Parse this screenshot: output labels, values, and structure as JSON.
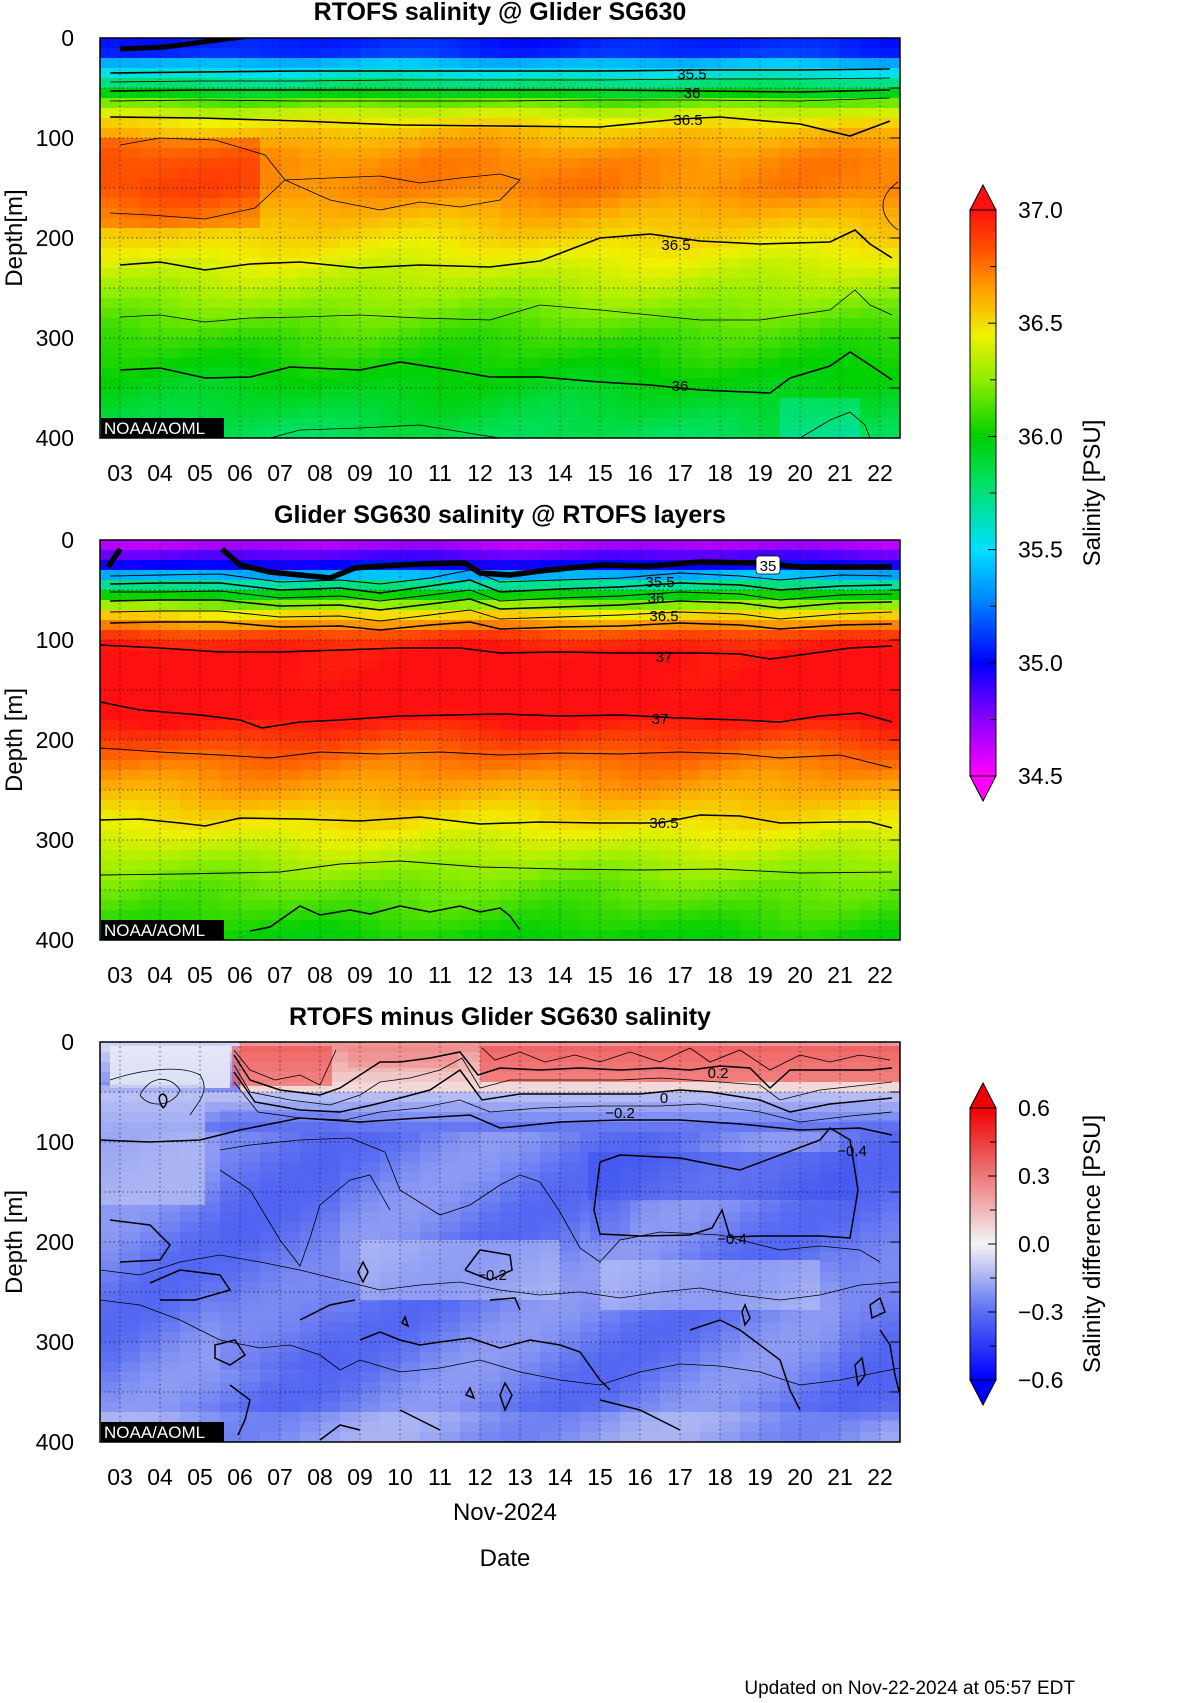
{
  "footer": {
    "updated": "Updated on Nov-22-2024 at 05:57 EDT"
  },
  "chart_data": [
    {
      "type": "heatmap",
      "title": "RTOFS salinity @ Glider SG630",
      "ylabel": "Depth[m]",
      "xlabel": "",
      "x_ticks": [
        "03",
        "04",
        "05",
        "06",
        "07",
        "08",
        "09",
        "10",
        "11",
        "12",
        "13",
        "14",
        "15",
        "16",
        "17",
        "18",
        "19",
        "20",
        "21",
        "22"
      ],
      "y_ticks": [
        0,
        100,
        200,
        300,
        400
      ],
      "ylim": [
        400,
        0
      ],
      "x_range_days": [
        2.5,
        22.5
      ],
      "grid": true,
      "watermark": "NOAA/AOML",
      "colorscale": "salinity",
      "contour_labels": [
        {
          "text": "35.5",
          "day": 17.3,
          "depth": 35
        },
        {
          "text": "36",
          "day": 17.3,
          "depth": 54
        },
        {
          "text": "36.5",
          "day": 17.2,
          "depth": 81
        },
        {
          "text": "36.5",
          "day": 16.9,
          "depth": 206
        },
        {
          "text": "36",
          "day": 17.0,
          "depth": 347
        }
      ],
      "profile": [
        {
          "depth": 0,
          "value": 35.05
        },
        {
          "depth": 15,
          "value": 35.1
        },
        {
          "depth": 25,
          "value": 35.4
        },
        {
          "depth": 40,
          "value": 35.65
        },
        {
          "depth": 55,
          "value": 35.95
        },
        {
          "depth": 70,
          "value": 36.3
        },
        {
          "depth": 90,
          "value": 36.55
        },
        {
          "depth": 120,
          "value": 36.7
        },
        {
          "depth": 150,
          "value": 36.72
        },
        {
          "depth": 190,
          "value": 36.55
        },
        {
          "depth": 240,
          "value": 36.35
        },
        {
          "depth": 300,
          "value": 36.1
        },
        {
          "depth": 350,
          "value": 35.95
        },
        {
          "depth": 400,
          "value": 35.82
        }
      ]
    },
    {
      "type": "heatmap",
      "title": "Glider SG630 salinity @ RTOFS layers",
      "ylabel": "Depth [m]",
      "xlabel": "",
      "x_ticks": [
        "03",
        "04",
        "05",
        "06",
        "07",
        "08",
        "09",
        "10",
        "11",
        "12",
        "13",
        "14",
        "15",
        "16",
        "17",
        "18",
        "19",
        "20",
        "21",
        "22"
      ],
      "y_ticks": [
        0,
        100,
        200,
        300,
        400
      ],
      "ylim": [
        400,
        0
      ],
      "x_range_days": [
        2.5,
        22.5
      ],
      "grid": true,
      "watermark": "NOAA/AOML",
      "colorscale": "salinity",
      "contour_labels": [
        {
          "text": "35",
          "day": 19.2,
          "depth": 25
        },
        {
          "text": "35.5",
          "day": 16.5,
          "depth": 41
        },
        {
          "text": "36",
          "day": 16.4,
          "depth": 57
        },
        {
          "text": "36.5",
          "day": 16.6,
          "depth": 75
        },
        {
          "text": "37",
          "day": 16.6,
          "depth": 116
        },
        {
          "text": "37",
          "day": 16.5,
          "depth": 178
        },
        {
          "text": "36.5",
          "day": 16.6,
          "depth": 282
        }
      ],
      "profile": [
        {
          "depth": 0,
          "value": 34.6
        },
        {
          "depth": 12,
          "value": 34.8
        },
        {
          "depth": 25,
          "value": 35.0
        },
        {
          "depth": 38,
          "value": 35.5
        },
        {
          "depth": 55,
          "value": 36.0
        },
        {
          "depth": 75,
          "value": 36.5
        },
        {
          "depth": 95,
          "value": 36.85
        },
        {
          "depth": 110,
          "value": 37.0
        },
        {
          "depth": 170,
          "value": 37.05
        },
        {
          "depth": 210,
          "value": 36.8
        },
        {
          "depth": 280,
          "value": 36.5
        },
        {
          "depth": 330,
          "value": 36.25
        },
        {
          "depth": 400,
          "value": 36.0
        }
      ]
    },
    {
      "type": "heatmap",
      "title": "RTOFS minus Glider SG630 salinity",
      "ylabel": "Depth [m]",
      "xlabel": "Date",
      "x_extra_label": "Nov-2024",
      "x_ticks": [
        "03",
        "04",
        "05",
        "06",
        "07",
        "08",
        "09",
        "10",
        "11",
        "12",
        "13",
        "14",
        "15",
        "16",
        "17",
        "18",
        "19",
        "20",
        "21",
        "22"
      ],
      "y_ticks": [
        0,
        100,
        200,
        300,
        400
      ],
      "ylim": [
        400,
        0
      ],
      "x_range_days": [
        2.5,
        22.5
      ],
      "grid": true,
      "watermark": "NOAA/AOML",
      "colorscale": "difference",
      "contour_labels": [
        {
          "text": "0.2",
          "day": 17.95,
          "depth": 30
        },
        {
          "text": "0",
          "day": 16.6,
          "depth": 55
        },
        {
          "text": "−0.2",
          "day": 15.5,
          "depth": 70
        },
        {
          "text": "−0.4",
          "day": 21.3,
          "depth": 108
        },
        {
          "text": "−0.4",
          "day": 18.3,
          "depth": 196
        },
        {
          "text": "−0.2",
          "day": 12.3,
          "depth": 232
        }
      ]
    }
  ],
  "colorbars": [
    {
      "label": "Salinity [PSU]",
      "ticks": [
        "37.0",
        "36.5",
        "36.0",
        "35.5",
        "35.0",
        "34.5"
      ],
      "range": [
        34.5,
        37.0
      ]
    },
    {
      "label": "Salinity difference [PSU]",
      "ticks": [
        "0.6",
        "0.3",
        "0.0",
        "−0.3",
        "−0.6"
      ],
      "range": [
        -0.6,
        0.6
      ]
    }
  ]
}
